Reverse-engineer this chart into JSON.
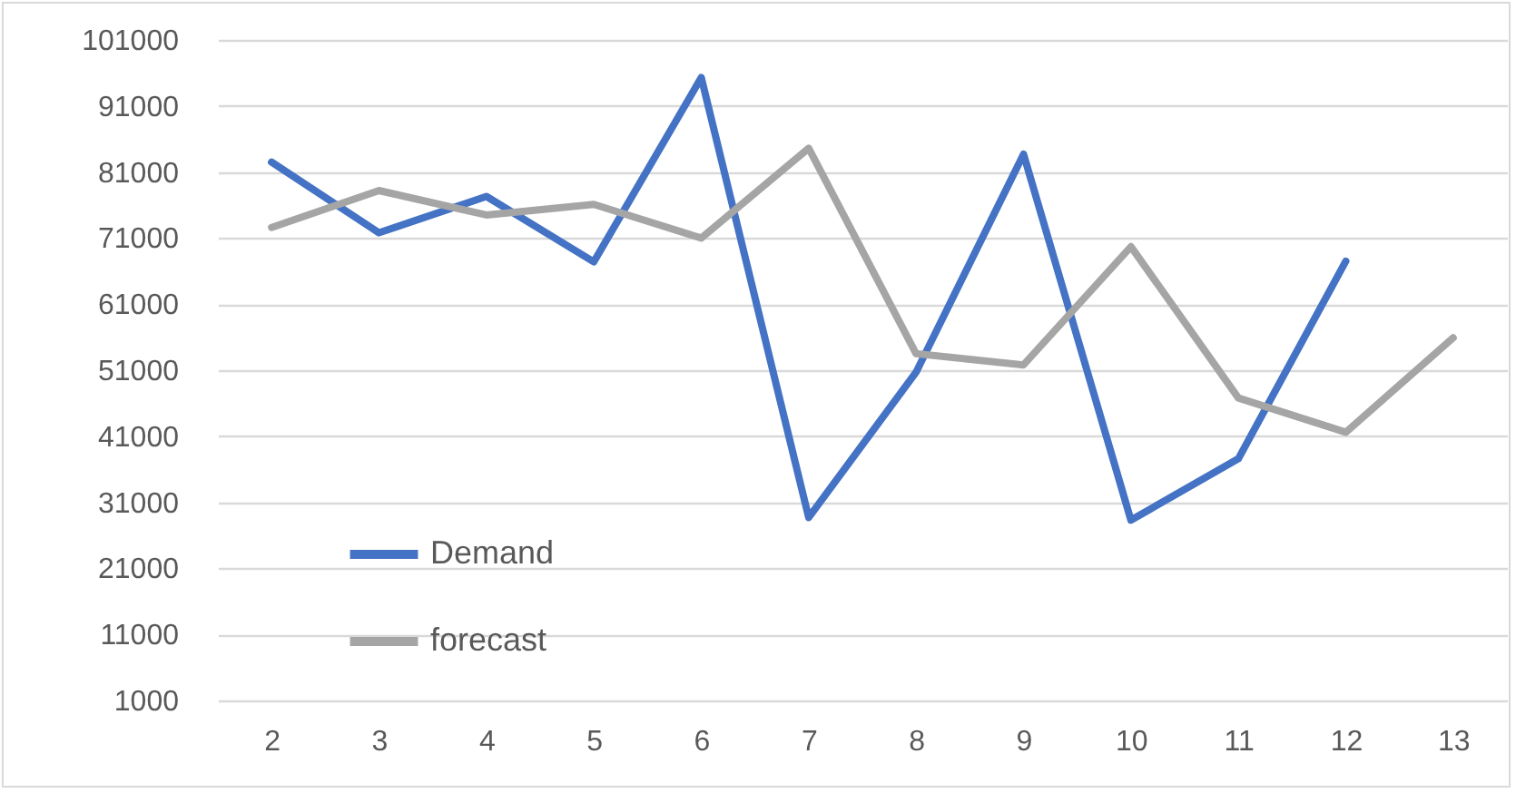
{
  "chart_data": {
    "type": "line",
    "categories": [
      "2",
      "3",
      "4",
      "5",
      "6",
      "7",
      "8",
      "9",
      "10",
      "11",
      "12",
      "13"
    ],
    "series": [
      {
        "name": "Demand",
        "color": "#4472c4",
        "values": [
          82500,
          71800,
          77300,
          67400,
          95300,
          28700,
          50700,
          83700,
          28300,
          37600,
          67500,
          null
        ]
      },
      {
        "name": "forecast",
        "color": "#a5a5a5",
        "values": [
          72600,
          78200,
          74500,
          76100,
          71000,
          84600,
          53500,
          51800,
          69700,
          46800,
          41600,
          55900
        ]
      }
    ],
    "ylim": [
      1000,
      101000
    ],
    "yticks": [
      1000,
      11000,
      21000,
      31000,
      41000,
      51000,
      61000,
      71000,
      81000,
      91000,
      101000
    ],
    "grid": "y",
    "legend": "bottom left",
    "line_style": "solid",
    "marker": "none"
  }
}
